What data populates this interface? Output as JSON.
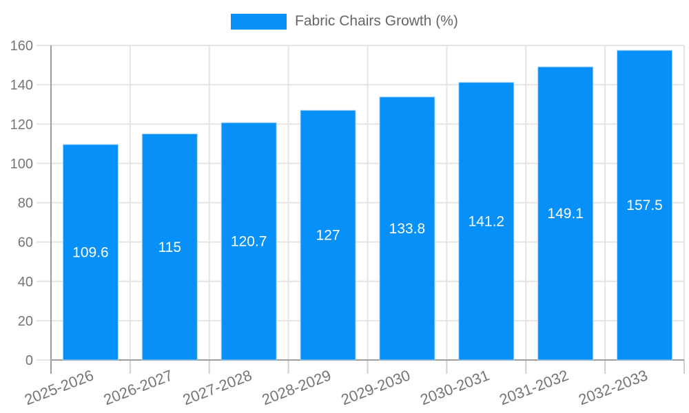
{
  "chart_data": {
    "type": "bar",
    "title": "",
    "legend": {
      "label": "Fabric Chairs Growth (%)",
      "position": "top"
    },
    "categories": [
      "2025-2026",
      "2026-2027",
      "2027-2028",
      "2028-2029",
      "2029-2030",
      "2030-2031",
      "2031-2032",
      "2032-2033"
    ],
    "series": [
      {
        "name": "Fabric Chairs Growth (%)",
        "values": [
          109.6,
          115,
          120.7,
          127,
          133.8,
          141.2,
          149.1,
          157.5
        ]
      }
    ],
    "value_labels": [
      "109.6",
      "115",
      "120.7",
      "127",
      "133.8",
      "141.2",
      "149.1",
      "157.5"
    ],
    "xlabel": "",
    "ylabel": "",
    "ylim": [
      0,
      160
    ],
    "ytick_step": 20,
    "yticks": [
      0,
      20,
      40,
      60,
      80,
      100,
      120,
      140,
      160
    ],
    "grid": true,
    "colors": {
      "bar_fill": "#0690f8",
      "bar_border": "#a6d5fa",
      "gridline": "#e4e4e4",
      "axis_line": "#9d9d9d",
      "tick_mark": "#cfcfcf",
      "tick_label": "#757575",
      "legend_text": "#666666",
      "value_label": "#ffffff"
    }
  }
}
